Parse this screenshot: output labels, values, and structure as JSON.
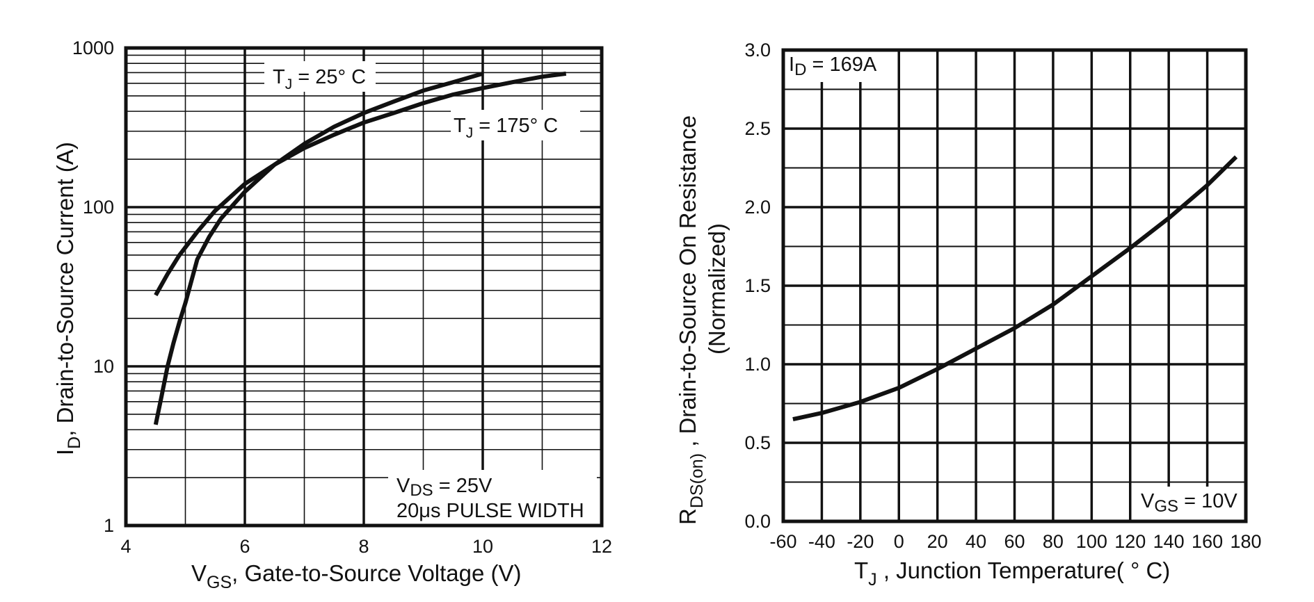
{
  "chart_data": [
    {
      "type": "line",
      "x_scale": "linear",
      "y_scale": "log",
      "xlim": [
        4,
        12
      ],
      "ylim": [
        1,
        1000
      ],
      "x_ticks": [
        "4",
        "6",
        "8",
        "10",
        "12"
      ],
      "y_ticks": [
        "1",
        "10",
        "100",
        "1000"
      ],
      "xlabel": {
        "main": "V",
        "sub": "GS",
        "rest": ", Gate-to-Source Voltage (V)"
      },
      "ylabel": {
        "main": "I",
        "sub": "D",
        "rest": ",  Drain-to-Source Current (A)"
      },
      "grid": true,
      "series": [
        {
          "name": "TJ = 25°C",
          "label": {
            "main": "T",
            "sub": "J",
            "rest": " = 25° C"
          },
          "x": [
            4.5,
            4.6,
            4.7,
            4.8,
            4.9,
            5.0,
            5.2,
            5.4,
            5.6,
            6.0,
            6.5,
            7.0,
            7.5,
            8.0,
            8.5,
            9.0,
            9.5,
            10.0
          ],
          "y": [
            4.3,
            6.5,
            10,
            14,
            19,
            25,
            47,
            65,
            85,
            125,
            185,
            250,
            320,
            390,
            460,
            540,
            610,
            690
          ]
        },
        {
          "name": "TJ = 175°C",
          "label": {
            "main": "T",
            "sub": "J",
            "rest": " = 175° C"
          },
          "x": [
            4.5,
            4.7,
            4.9,
            5.2,
            5.5,
            6.0,
            6.5,
            7.0,
            7.5,
            8.0,
            8.5,
            9.0,
            9.5,
            10.0,
            10.5,
            11.0,
            11.4
          ],
          "y": [
            28,
            38,
            50,
            70,
            95,
            140,
            185,
            235,
            285,
            340,
            390,
            450,
            510,
            560,
            610,
            660,
            690
          ]
        }
      ],
      "annotations": [
        {
          "main": "V",
          "sub": "DS",
          "rest": " = 25V"
        },
        {
          "text": "20μs PULSE WIDTH"
        }
      ]
    },
    {
      "type": "line",
      "x_scale": "linear",
      "y_scale": "linear",
      "xlim": [
        -60,
        180
      ],
      "ylim": [
        0,
        3.0
      ],
      "x_ticks": [
        "-60",
        "-40",
        "-20",
        "0",
        "20",
        "40",
        "60",
        "80",
        "100",
        "120",
        "140",
        "160",
        "180"
      ],
      "y_ticks": [
        "0.0",
        "0.5",
        "1.0",
        "1.5",
        "2.0",
        "2.5",
        "3.0"
      ],
      "xlabel": {
        "main": "T",
        "sub": "J",
        "rest": " , Junction Temperature( ° C)"
      },
      "ylabel": {
        "main": "R",
        "sub": "DS(on)",
        "rest": "  , Drain-to-Source On Resistance",
        "line2": "(Normalized)"
      },
      "grid": true,
      "series": [
        {
          "x": [
            -55,
            -40,
            -20,
            0,
            20,
            40,
            60,
            80,
            100,
            120,
            140,
            160,
            175
          ],
          "y": [
            0.65,
            0.69,
            0.76,
            0.85,
            0.97,
            1.1,
            1.23,
            1.38,
            1.56,
            1.74,
            1.93,
            2.14,
            2.32
          ]
        }
      ],
      "annotations": [
        {
          "main": "I",
          "sub": "D",
          "rest": " = 169A"
        },
        {
          "main": "V",
          "sub": "GS",
          "rest": " = 10V"
        }
      ]
    }
  ]
}
